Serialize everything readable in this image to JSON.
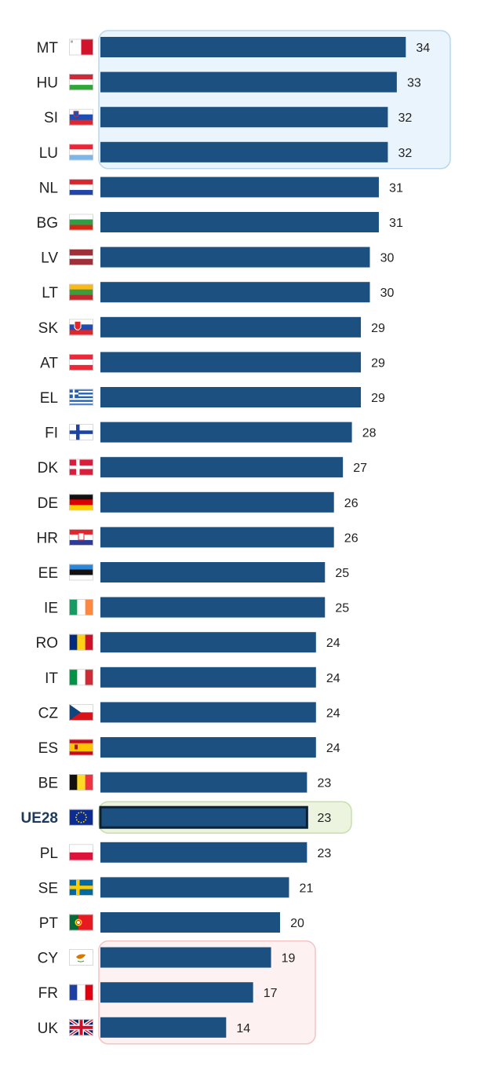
{
  "chart_data": {
    "type": "bar",
    "orientation": "horizontal",
    "categories": [
      "MT",
      "HU",
      "SI",
      "LU",
      "NL",
      "BG",
      "LV",
      "LT",
      "SK",
      "AT",
      "EL",
      "FI",
      "DK",
      "DE",
      "HR",
      "EE",
      "IE",
      "RO",
      "IT",
      "CZ",
      "ES",
      "BE",
      "UE28",
      "PL",
      "SE",
      "PT",
      "CY",
      "FR",
      "UK"
    ],
    "values": [
      34,
      33,
      32,
      32,
      31,
      31,
      30,
      30,
      29,
      29,
      29,
      28,
      27,
      26,
      26,
      25,
      25,
      24,
      24,
      24,
      24,
      23,
      23,
      23,
      21,
      20,
      19,
      17,
      14
    ],
    "title": "",
    "xlabel": "",
    "ylabel": "",
    "xlim": [
      0,
      35
    ],
    "grid": false,
    "bar_color": "#1b5080",
    "highlight": {
      "top_group": [
        "MT",
        "HU",
        "SI",
        "LU"
      ],
      "top_group_fill": "#eaf4fc",
      "top_group_border": "#b9d7ec",
      "average": "UE28",
      "average_fill": "#ecf4df",
      "average_border": "#c7dfae",
      "bottom_group": [
        "CY",
        "FR",
        "UK"
      ],
      "bottom_group_fill": "#fdf1f1",
      "bottom_group_border": "#f4c3c3"
    },
    "flags": {
      "MT": "flag-malta-icon",
      "HU": "flag-hungary-icon",
      "SI": "flag-slovenia-icon",
      "LU": "flag-luxembourg-icon",
      "NL": "flag-netherlands-icon",
      "BG": "flag-bulgaria-icon",
      "LV": "flag-latvia-icon",
      "LT": "flag-lithuania-icon",
      "SK": "flag-slovakia-icon",
      "AT": "flag-austria-icon",
      "EL": "flag-greece-icon",
      "FI": "flag-finland-icon",
      "DK": "flag-denmark-icon",
      "DE": "flag-germany-icon",
      "HR": "flag-croatia-icon",
      "EE": "flag-estonia-icon",
      "IE": "flag-ireland-icon",
      "RO": "flag-romania-icon",
      "IT": "flag-italy-icon",
      "CZ": "flag-czechia-icon",
      "ES": "flag-spain-icon",
      "BE": "flag-belgium-icon",
      "UE28": "flag-eu-icon",
      "PL": "flag-poland-icon",
      "SE": "flag-sweden-icon",
      "PT": "flag-portugal-icon",
      "CY": "flag-cyprus-icon",
      "FR": "flag-france-icon",
      "UK": "flag-uk-icon"
    }
  }
}
